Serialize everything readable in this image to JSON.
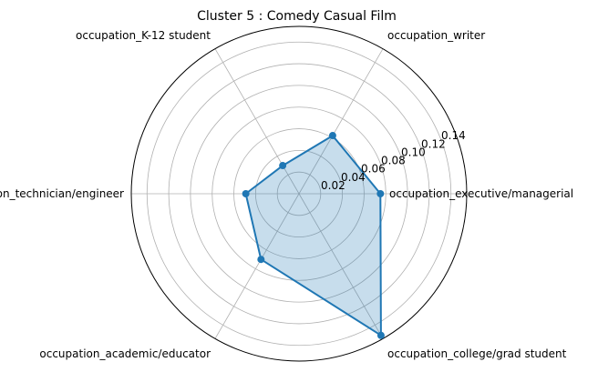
{
  "chart_data": {
    "type": "radar",
    "title": "Cluster 5 : Comedy Casual Film",
    "categories": [
      "occupation_executive/managerial",
      "occupation_writer",
      "occupation_K-12 student",
      "occupation_technician/engineer",
      "occupation_academic/educator",
      "occupation_college/grad student"
    ],
    "values": [
      0.075,
      0.062,
      0.03,
      0.049,
      0.07,
      0.151
    ],
    "rticks": [
      0.02,
      0.04,
      0.06,
      0.08,
      0.1,
      0.12,
      0.14
    ],
    "rtick_labels": [
      "0.02",
      "0.04",
      "0.06",
      "0.08",
      "0.10",
      "0.12",
      "0.14"
    ],
    "rlim": [
      0,
      0.1545
    ],
    "grid": true,
    "colors": {
      "line": "#1f77b4",
      "fill": "#1f77b4"
    }
  }
}
